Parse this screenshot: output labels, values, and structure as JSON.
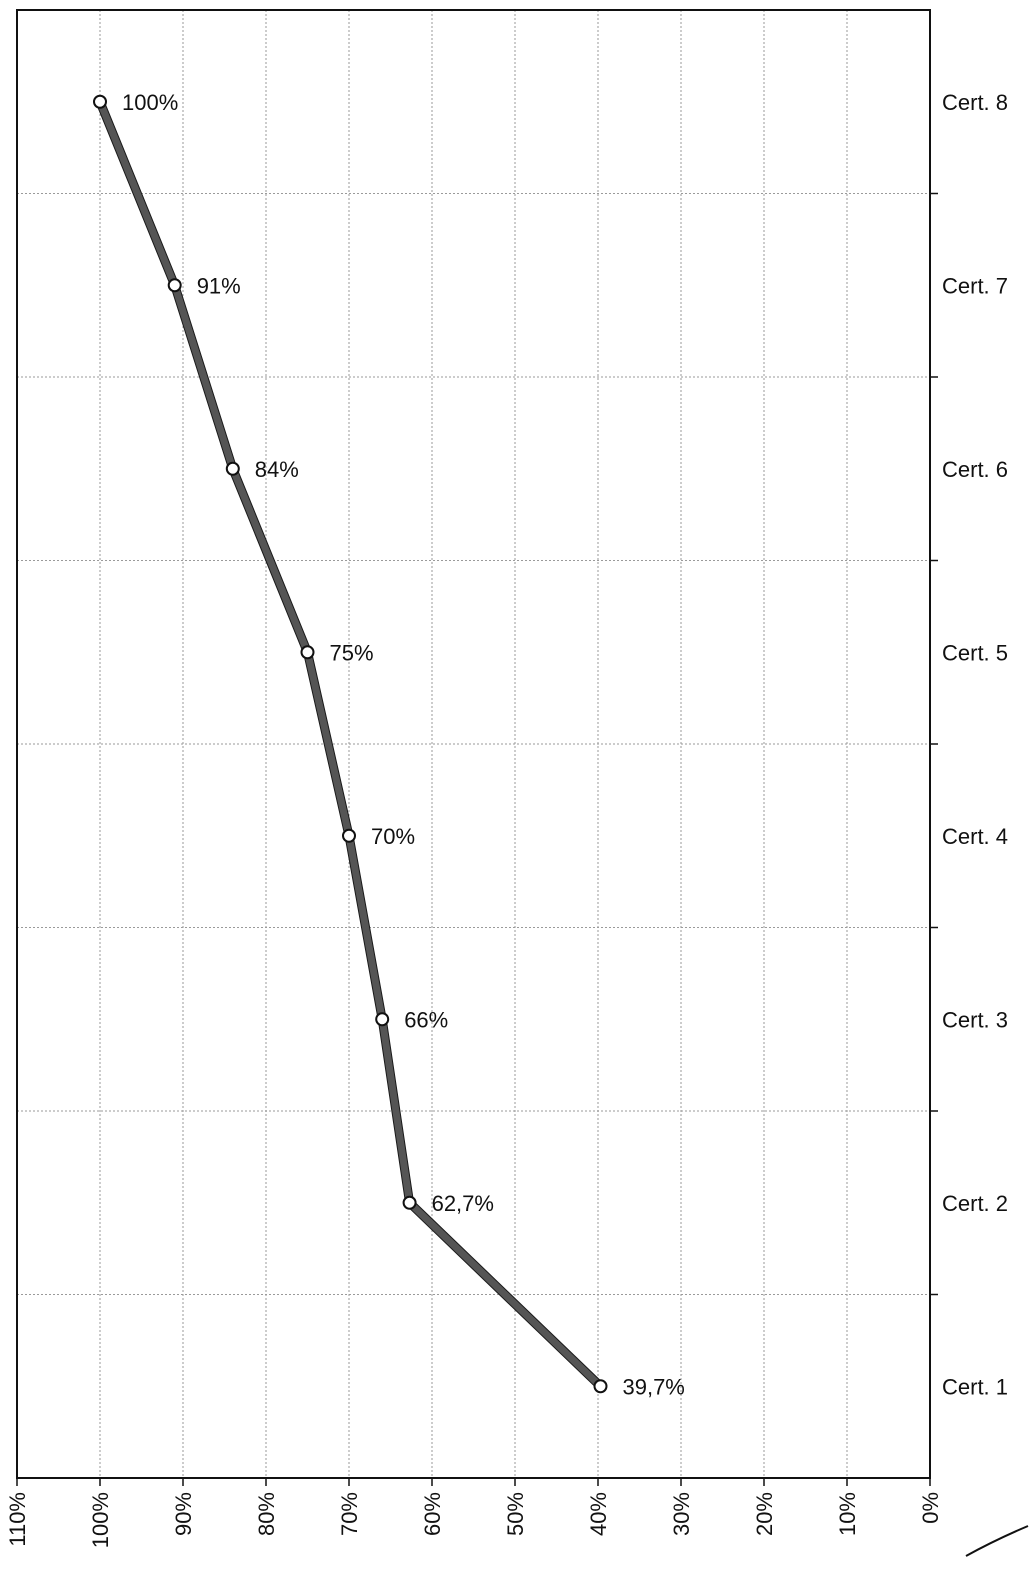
{
  "chart_data": {
    "type": "line",
    "orientation": "horizontal-values",
    "title": "",
    "xlabel": "",
    "ylabel": "",
    "x_axis": {
      "reversed": true,
      "xlim": [
        0,
        110
      ],
      "ticks": [
        110,
        100,
        90,
        80,
        70,
        60,
        50,
        40,
        30,
        20,
        10,
        0
      ],
      "tick_labels": [
        "110%",
        "100%",
        "90%",
        "80%",
        "70%",
        "60%",
        "50%",
        "40%",
        "30%",
        "20%",
        "10%",
        "0%"
      ],
      "tick_label_rotation": "vertical"
    },
    "categories_axis_position": "right",
    "categories": [
      "Cert. 8",
      "Cert. 7",
      "Cert. 6",
      "Cert. 5",
      "Cert. 4",
      "Cert. 3",
      "Cert. 2",
      "Cert. 1"
    ],
    "series": [
      {
        "values": [
          100,
          91,
          84,
          75,
          70,
          66,
          62.7,
          39.7
        ],
        "labels": [
          "100%",
          "91%",
          "84%",
          "75%",
          "70%",
          "66%",
          "62,7%",
          "39,7%"
        ],
        "color": "#555555",
        "marker": "circle-open"
      }
    ],
    "grid": true,
    "legend": "none"
  }
}
